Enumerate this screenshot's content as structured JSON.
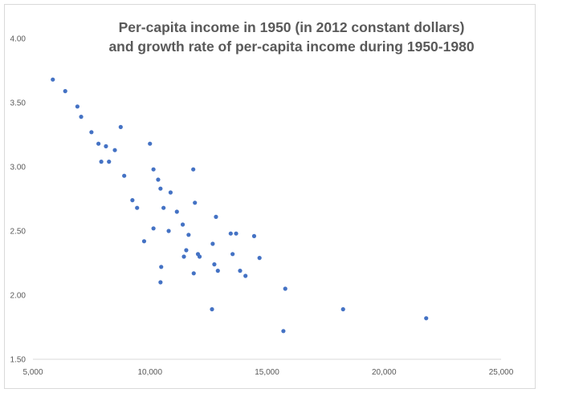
{
  "chart_data": {
    "type": "scatter",
    "title_lines": [
      "Per-capita income in 1950 (in 2012 constant dollars)",
      "and growth rate of per-capita income during 1950-1980"
    ],
    "xlabel": "",
    "ylabel": "",
    "xlim": [
      5000,
      25000
    ],
    "ylim": [
      1.5,
      4.0
    ],
    "xticks": [
      5000,
      10000,
      15000,
      20000,
      25000
    ],
    "xtick_labels": [
      "5,000",
      "10,000",
      "15,000",
      "20,000",
      "25,000"
    ],
    "yticks": [
      1.5,
      2.0,
      2.5,
      3.0,
      3.5,
      4.0
    ],
    "ytick_labels": [
      "1.50",
      "2.00",
      "2.50",
      "3.00",
      "3.50",
      "4.00"
    ],
    "grid": false,
    "legend": "none",
    "point_color": "#4472c4",
    "points": [
      {
        "x": 5850,
        "y": 3.68
      },
      {
        "x": 6380,
        "y": 3.59
      },
      {
        "x": 6900,
        "y": 3.47
      },
      {
        "x": 7060,
        "y": 3.39
      },
      {
        "x": 7500,
        "y": 3.27
      },
      {
        "x": 7800,
        "y": 3.18
      },
      {
        "x": 7920,
        "y": 3.04
      },
      {
        "x": 8120,
        "y": 3.16
      },
      {
        "x": 8250,
        "y": 3.04
      },
      {
        "x": 8500,
        "y": 3.13
      },
      {
        "x": 8750,
        "y": 3.31
      },
      {
        "x": 8900,
        "y": 2.93
      },
      {
        "x": 9250,
        "y": 2.74
      },
      {
        "x": 9450,
        "y": 2.68
      },
      {
        "x": 9750,
        "y": 2.42
      },
      {
        "x": 10000,
        "y": 3.18
      },
      {
        "x": 10150,
        "y": 2.98
      },
      {
        "x": 10150,
        "y": 2.52
      },
      {
        "x": 10350,
        "y": 2.9
      },
      {
        "x": 10450,
        "y": 2.83
      },
      {
        "x": 10480,
        "y": 2.22
      },
      {
        "x": 10450,
        "y": 2.1
      },
      {
        "x": 10580,
        "y": 2.68
      },
      {
        "x": 10800,
        "y": 2.5
      },
      {
        "x": 10880,
        "y": 2.8
      },
      {
        "x": 11150,
        "y": 2.65
      },
      {
        "x": 11400,
        "y": 2.55
      },
      {
        "x": 11450,
        "y": 2.3
      },
      {
        "x": 11550,
        "y": 2.35
      },
      {
        "x": 11650,
        "y": 2.47
      },
      {
        "x": 11850,
        "y": 2.98
      },
      {
        "x": 11870,
        "y": 2.17
      },
      {
        "x": 11920,
        "y": 2.72
      },
      {
        "x": 12050,
        "y": 2.32
      },
      {
        "x": 12120,
        "y": 2.3
      },
      {
        "x": 12650,
        "y": 1.89
      },
      {
        "x": 12680,
        "y": 2.4
      },
      {
        "x": 12750,
        "y": 2.24
      },
      {
        "x": 12820,
        "y": 2.61
      },
      {
        "x": 12900,
        "y": 2.19
      },
      {
        "x": 13450,
        "y": 2.48
      },
      {
        "x": 13530,
        "y": 2.32
      },
      {
        "x": 13680,
        "y": 2.48
      },
      {
        "x": 13850,
        "y": 2.19
      },
      {
        "x": 14080,
        "y": 2.15
      },
      {
        "x": 14450,
        "y": 2.46
      },
      {
        "x": 14680,
        "y": 2.29
      },
      {
        "x": 15700,
        "y": 1.72
      },
      {
        "x": 15780,
        "y": 2.05
      },
      {
        "x": 18250,
        "y": 1.89
      },
      {
        "x": 21800,
        "y": 1.82
      }
    ]
  }
}
